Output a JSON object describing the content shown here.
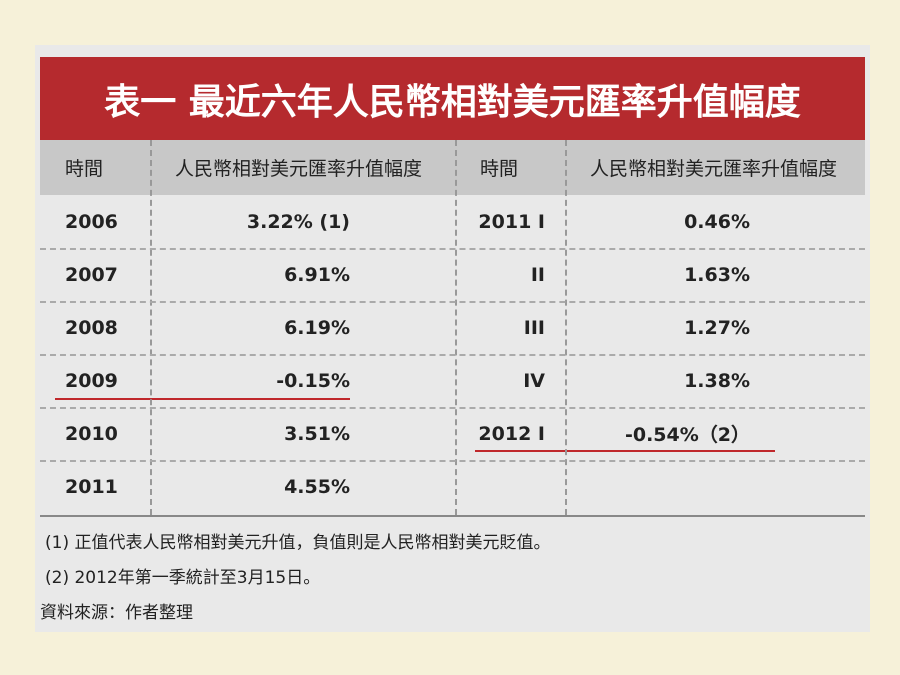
{
  "title": "表一 最近六年人民幣相對美元匯率升值幅度",
  "table": {
    "header": [
      "時間",
      "人民幣相對美元匯率升值幅度",
      "時間",
      "人民幣相對美元匯率升值幅度"
    ],
    "left_rows": [
      [
        "2006",
        "3.22% (1)"
      ],
      [
        "2007",
        "6.91%"
      ],
      [
        "2008",
        "6.19%"
      ],
      [
        "2009",
        "-0.15%"
      ],
      [
        "2010",
        "3.51%"
      ],
      [
        "2011",
        "4.55%"
      ]
    ],
    "right_rows": [
      [
        "2011 I",
        "0.46%"
      ],
      [
        "II",
        "1.63%"
      ],
      [
        "III",
        "1.27%"
      ],
      [
        "IV",
        "1.38%"
      ],
      [
        "2012 I",
        "-0.54%（2）"
      ]
    ]
  },
  "notes": [
    "(1) 正值代表人民幣相對美元升值，負值則是人民幣相對美元貶值。",
    "(2) 2012年第一季統計至3月15日。"
  ],
  "source": "資料來源：作者整理"
}
